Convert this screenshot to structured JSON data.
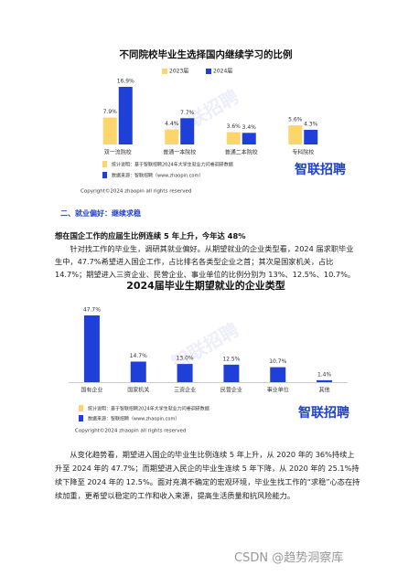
{
  "chart_data": [
    {
      "type": "bar",
      "title": "不同院校毕业生选择国内继续学习的比例",
      "categories": [
        "双一流院校",
        "普通一本院校",
        "普通二本院校",
        "专科院校"
      ],
      "series": [
        {
          "name": "2023届",
          "color": "#fcd56b",
          "values": [
            7.9,
            4.4,
            3.6,
            5.6
          ],
          "value_labels": [
            "7.9%",
            "4.4%",
            "3.6%",
            "5.6%"
          ]
        },
        {
          "name": "2024届",
          "color": "#1f3fd9",
          "values": [
            16.9,
            7.7,
            3.4,
            4.3
          ],
          "value_labels": [
            "16.9%",
            "7.7%",
            "3.4%",
            "4.3%"
          ]
        }
      ],
      "watermark": "智联招聘",
      "notes": [
        "统计说明：基于智联招聘2024年大学生就业力问卷调研数据",
        "数据来源：智联招聘（www.zhaopin.com）"
      ],
      "logo": "智联招聘",
      "copyright": "Copyright©2024 zhaopin all rights reserved"
    },
    {
      "type": "bar",
      "title": "2024届毕业生期望就业的企业类型",
      "categories": [
        "国有企业",
        "国家机关",
        "三资企业",
        "民营企业",
        "事业单位",
        "其他"
      ],
      "series": [
        {
          "color": "#1f3fd9",
          "values": [
            47.7,
            14.7,
            13,
            12.5,
            10.7,
            1.4
          ],
          "value_labels": [
            "47.7%",
            "14.7%",
            "13.0%",
            "12.5%",
            "10.7%",
            "1.4%"
          ]
        }
      ],
      "watermark": "智联招聘",
      "notes": [
        "统计说明：基于智联招聘2024年大学生就业力问卷调研数据",
        "数据来源：智联招聘（www.zhaopin.com）"
      ],
      "logo": "智联招聘",
      "copyright": "Copyright©2024 zhaopin all rights reserved"
    }
  ],
  "section_heading": "二、就业偏好：继续求稳",
  "highlight": "想在国企工作的应届生比例连续 5 年上升，今年达 48%",
  "paragraphs": [
    "针对找工作的毕业生，调研其就业偏好。从期望就业的企业类型看，2024 届求职毕业生中，47.7%希望进入国企工作，占比排名各类型企业之首；其次是国家机关，占比 14.7%；期望进入三资企业、民营企业、事业单位的比例分别为 13%、12.5%、10.7%。",
    "从变化趋势看，期望进入国企的毕业生比例连续 5 年上升，从 2020 年的 36%持续上升至 2024 年的 47.7%；而期望进入民企的毕业生连续 5 年下降，从 2020 年的 25.1%持续下降至 2024 年的 12.5%。面对充满不确定的宏观环境，毕业生找工作的“求稳”心态在持续加重，更希望以稳定的工作和收入来源，提高生活质量和抗风险能力。"
  ],
  "footer_watermark": "CSDN @趋势洞察库"
}
